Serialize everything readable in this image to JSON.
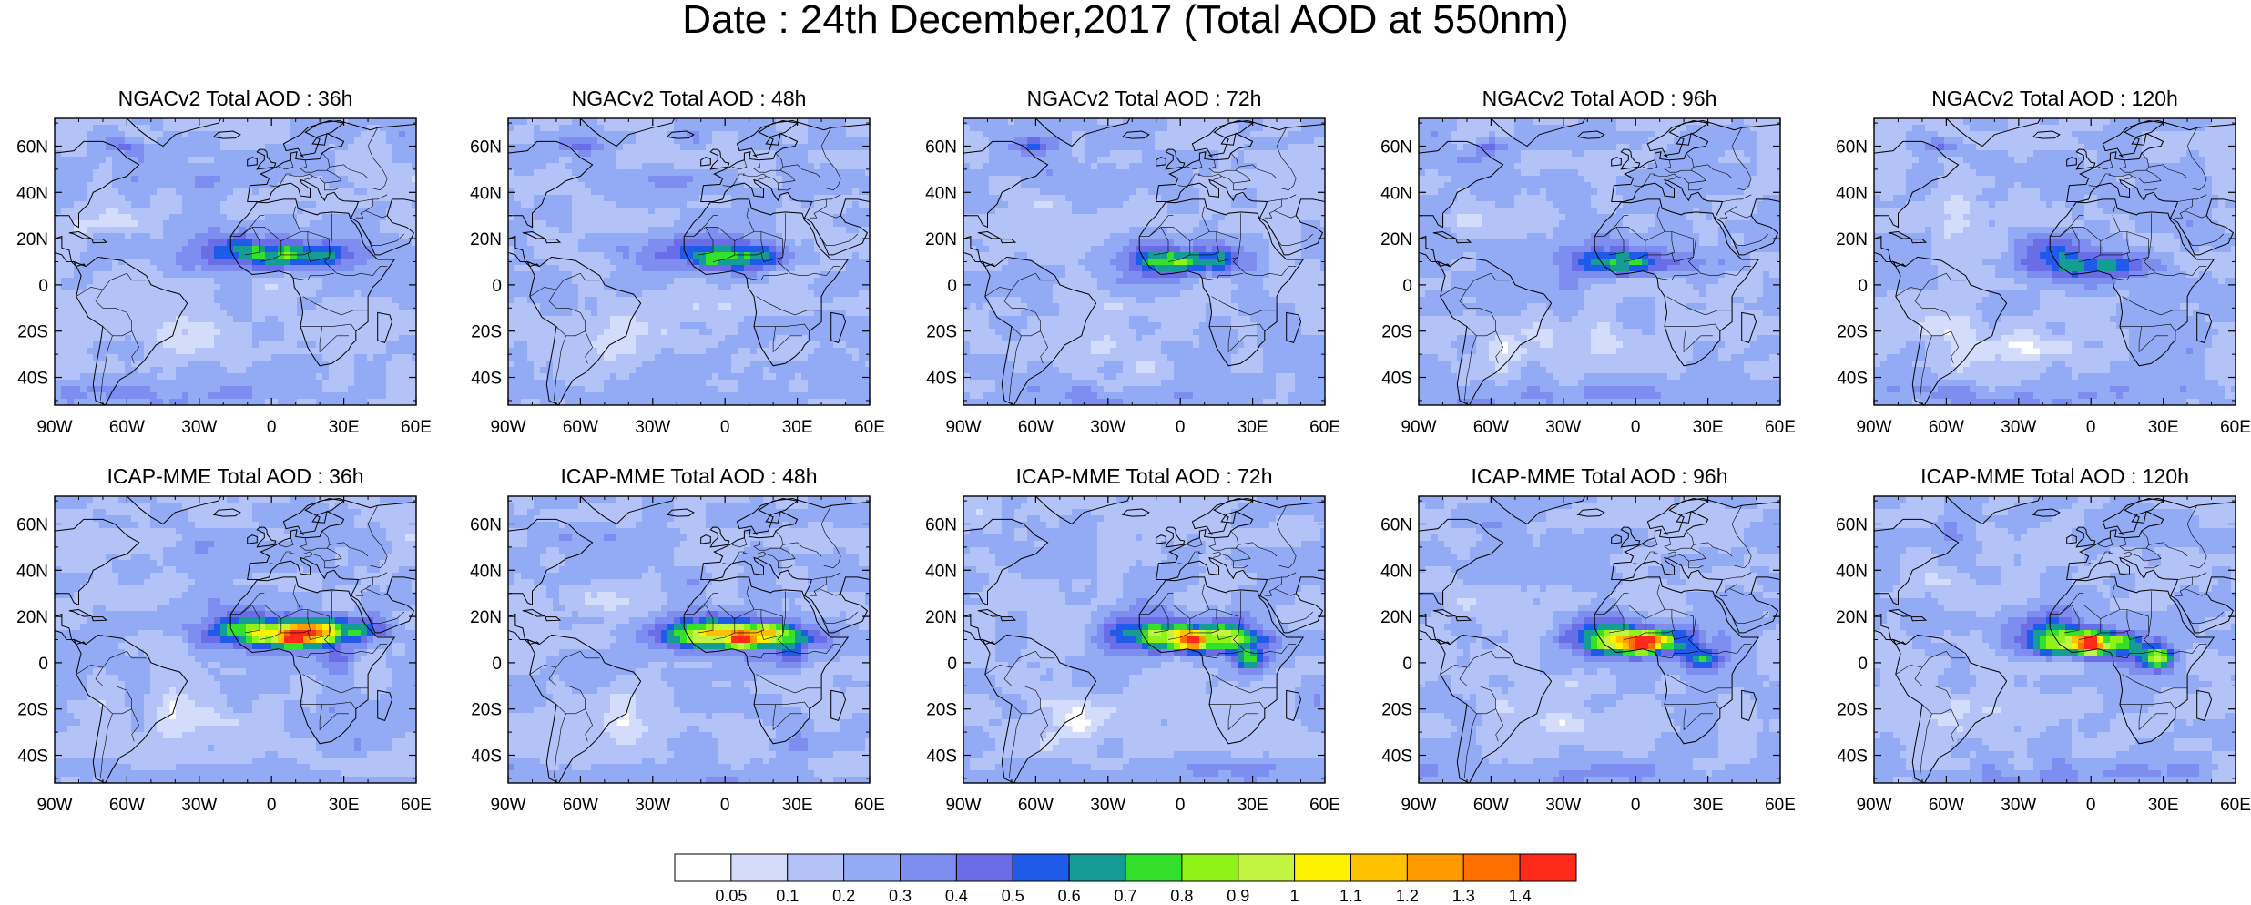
{
  "title": "Date : 24th December,2017 (Total AOD at 550nm)",
  "rows": [
    {
      "model": "NGACv2",
      "panels": [
        {
          "label": "NGACv2 Total AOD : 36h"
        },
        {
          "label": "NGACv2 Total AOD : 48h"
        },
        {
          "label": "NGACv2 Total AOD : 72h"
        },
        {
          "label": "NGACv2 Total AOD : 96h"
        },
        {
          "label": "NGACv2 Total AOD : 120h"
        }
      ]
    },
    {
      "model": "ICAP-MME",
      "panels": [
        {
          "label": "ICAP-MME Total AOD : 36h"
        },
        {
          "label": "ICAP-MME Total AOD : 48h"
        },
        {
          "label": "ICAP-MME Total AOD : 72h"
        },
        {
          "label": "ICAP-MME Total AOD : 96h"
        },
        {
          "label": "ICAP-MME Total AOD : 120h"
        }
      ]
    }
  ],
  "lat_ticks": [
    "60N",
    "40N",
    "20N",
    "0",
    "20S",
    "40S"
  ],
  "lon_ticks": [
    "90W",
    "60W",
    "30W",
    "0",
    "30E",
    "60E"
  ],
  "colorbar": {
    "labels": [
      "0.05",
      "0.1",
      "0.2",
      "0.3",
      "0.4",
      "0.5",
      "0.6",
      "0.7",
      "0.8",
      "0.9",
      "1",
      "1.1",
      "1.2",
      "1.3",
      "1.4"
    ],
    "colors": [
      "#ffffff",
      "#d4dcfb",
      "#b3c2f7",
      "#93aaf5",
      "#7d8ef0",
      "#6a6ee6",
      "#1f5be8",
      "#159c95",
      "#34e02c",
      "#8ff31a",
      "#c2f542",
      "#fff200",
      "#ffc000",
      "#ff9a00",
      "#ff6e00",
      "#ff2a1a"
    ]
  }
}
